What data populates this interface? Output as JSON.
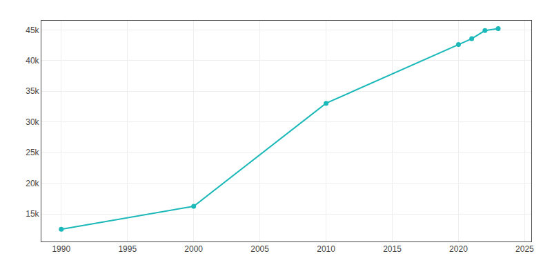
{
  "chart_data": {
    "type": "line",
    "x": [
      1990,
      2000,
      2010,
      2020,
      2021,
      2022,
      2023
    ],
    "values": [
      12497,
      16242,
      33039,
      42625,
      43567,
      44890,
      45200
    ],
    "color": "#1ab8b8",
    "marker": "circle",
    "xlim": [
      1988.5,
      2025.5
    ],
    "xticks": [
      1990,
      1995,
      2000,
      2005,
      2010,
      2015,
      2020,
      2025
    ],
    "ylim": [
      10500,
      46500
    ],
    "yticks": [
      {
        "value": 15000,
        "label": "15k"
      },
      {
        "value": 20000,
        "label": "20k"
      },
      {
        "value": 25000,
        "label": "25k"
      },
      {
        "value": 30000,
        "label": "30k"
      },
      {
        "value": 35000,
        "label": "35k"
      },
      {
        "value": 40000,
        "label": "40k"
      },
      {
        "value": 45000,
        "label": "45k"
      }
    ],
    "grid": true
  }
}
